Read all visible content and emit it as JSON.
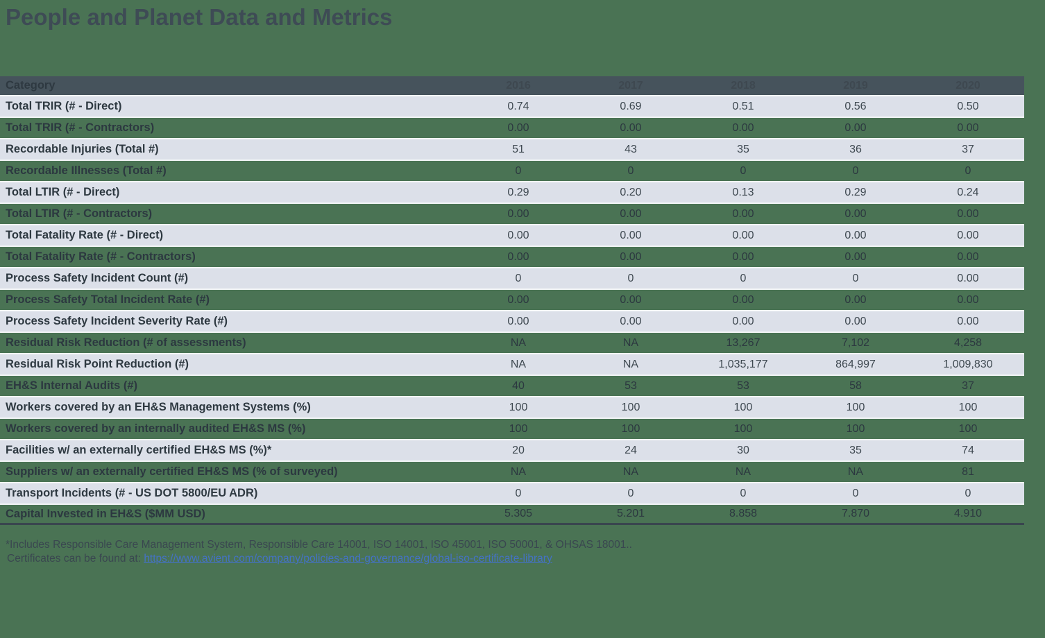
{
  "title": "People and Planet Data and Metrics",
  "table": {
    "category_header": "Category",
    "year_headers": [
      "2016",
      "2017",
      "2018",
      "2019",
      "2020"
    ],
    "rows": [
      {
        "label": "Total TRIR (# - Direct)",
        "values": [
          "0.74",
          "0.69",
          "0.51",
          "0.56",
          "0.50"
        ]
      },
      {
        "label": "Total TRIR (# - Contractors)",
        "values": [
          "0.00",
          "0.00",
          "0.00",
          "0.00",
          "0.00"
        ]
      },
      {
        "label": "Recordable Injuries (Total #)",
        "values": [
          "51",
          "43",
          "35",
          "36",
          "37"
        ]
      },
      {
        "label": "Recordable Illnesses (Total #)",
        "values": [
          "0",
          "0",
          "0",
          "0",
          "0"
        ]
      },
      {
        "label": "Total LTIR (# - Direct)",
        "values": [
          "0.29",
          "0.20",
          "0.13",
          "0.29",
          "0.24"
        ]
      },
      {
        "label": "Total LTIR (# - Contractors)",
        "values": [
          "0.00",
          "0.00",
          "0.00",
          "0.00",
          "0.00"
        ]
      },
      {
        "label": "Total Fatality Rate (# - Direct)",
        "values": [
          "0.00",
          "0.00",
          "0.00",
          "0.00",
          "0.00"
        ]
      },
      {
        "label": "Total Fatality Rate (# - Contractors)",
        "values": [
          "0.00",
          "0.00",
          "0.00",
          "0.00",
          "0.00"
        ]
      },
      {
        "label": "Process Safety Incident Count (#)",
        "values": [
          "0",
          "0",
          "0",
          "0",
          "0.00"
        ]
      },
      {
        "label": "Process Safety Total Incident Rate (#)",
        "values": [
          "0.00",
          "0.00",
          "0.00",
          "0.00",
          "0.00"
        ]
      },
      {
        "label": "Process Safety Incident Severity Rate (#)",
        "values": [
          "0.00",
          "0.00",
          "0.00",
          "0.00",
          "0.00"
        ]
      },
      {
        "label": "Residual Risk Reduction (# of assessments)",
        "values": [
          "NA",
          "NA",
          "13,267",
          "7,102",
          "4,258"
        ]
      },
      {
        "label": "Residual Risk Point Reduction (#)",
        "values": [
          "NA",
          "NA",
          "1,035,177",
          "864,997",
          "1,009,830"
        ]
      },
      {
        "label": "EH&S Internal Audits (#)",
        "values": [
          "40",
          "53",
          "53",
          "58",
          "37"
        ]
      },
      {
        "label": "Workers covered by an EH&S Management Systems (%)",
        "values": [
          "100",
          "100",
          "100",
          "100",
          "100"
        ]
      },
      {
        "label": "Workers covered by an internally audited EH&S MS (%)",
        "values": [
          "100",
          "100",
          "100",
          "100",
          "100"
        ]
      },
      {
        "label": "Facilities w/ an externally certified EH&S MS (%)*",
        "values": [
          "20",
          "24",
          "30",
          "35",
          "74"
        ]
      },
      {
        "label": "Suppliers w/ an externally certified EH&S MS (% of surveyed)",
        "values": [
          "NA",
          "NA",
          "NA",
          "NA",
          "81"
        ]
      },
      {
        "label": "Transport Incidents (# - US DOT 5800/EU ADR)",
        "values": [
          "0",
          "0",
          "0",
          "0",
          "0"
        ]
      },
      {
        "label": "Capital Invested in EH&S ($MM USD)",
        "values": [
          "5.305",
          "5.201",
          "8.858",
          "7.870",
          "4.910"
        ]
      }
    ]
  },
  "footnote": {
    "line1": "*Includes Responsible Care Management System, Responsible Care 14001, ISO 14001, ISO 45001, ISO 50001, & OHSAS 18001..",
    "line2_prefix": "Certificates can be found at: ",
    "link_text": "https://www.avient.com/company/policies-and-governance/global-iso-certificate-library"
  },
  "colors": {
    "page_background": "#4A7354",
    "header_bg": "#46535C",
    "light_row_bg": "#DCE0E9",
    "title_text": "#3E4B55",
    "link_blue": "#4472C4",
    "bottom_rule": "#39454E"
  }
}
